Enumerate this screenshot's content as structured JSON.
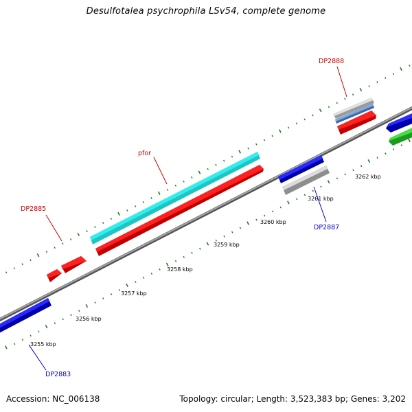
{
  "title": "Desulfotalea psychrophila LSv54, complete genome",
  "footer": {
    "accession": "Accession: NC_006138",
    "stats": "Topology: circular; Length: 3,523,383 bp; Genes: 3,202"
  },
  "scale": {
    "unit_suffix": " kbp",
    "labels": [
      "3255 kbp",
      "3256 kbp",
      "3257 kbp",
      "3258 kbp",
      "3259 kbp",
      "3260 kbp",
      "3261 kbp",
      "3262 kbp"
    ]
  },
  "gene_labels": [
    "DP2888",
    "pfor",
    "DP2885",
    "DP2887",
    "DP2883"
  ],
  "colors": {
    "backbone": "#8c8c8c",
    "tick": "#1e7a1e",
    "label_red": "#cc0000",
    "label_blue": "#0000cc",
    "feature_red": "#ee1111",
    "feature_blue": "#1111dd",
    "feature_cyan": "#22e5e5",
    "feature_grey": "#c4c4c4",
    "feature_steel": "#5a8cc8",
    "feature_green": "#33cc33"
  }
}
